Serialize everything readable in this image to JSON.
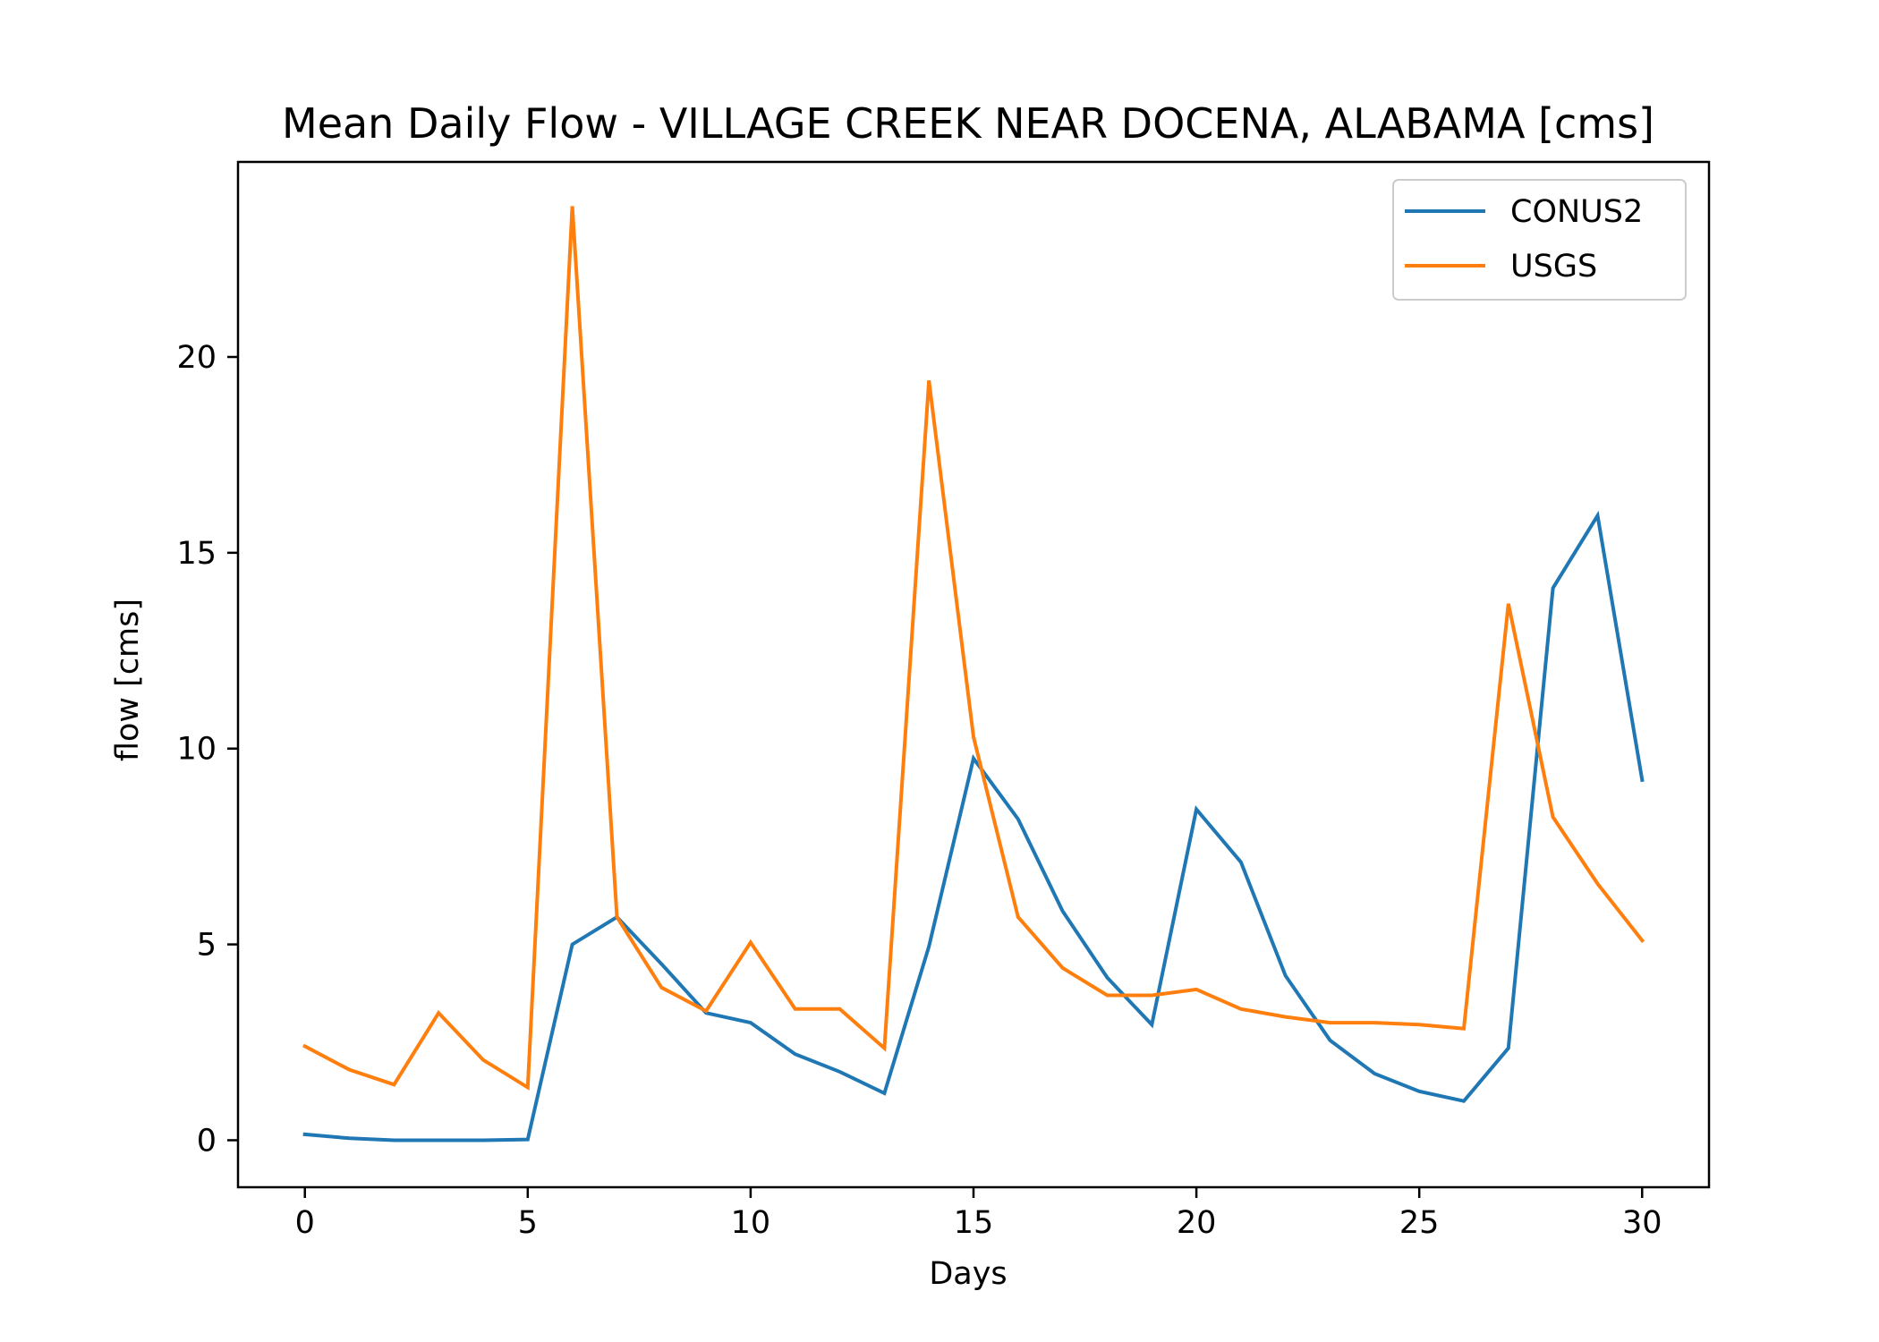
{
  "chart_data": {
    "type": "line",
    "title": "Mean Daily Flow - VILLAGE CREEK NEAR DOCENA, ALABAMA [cms]",
    "xlabel": "Days",
    "ylabel": "flow [cms]",
    "xlim": [
      -1.5,
      31.5
    ],
    "ylim": [
      -1.2,
      24.98
    ],
    "xticks": [
      0,
      5,
      10,
      15,
      20,
      25,
      30
    ],
    "yticks": [
      0,
      5,
      10,
      15,
      20
    ],
    "grid": false,
    "legend_position": "top-right",
    "x": [
      0,
      1,
      2,
      3,
      4,
      5,
      6,
      7,
      8,
      9,
      10,
      11,
      12,
      13,
      14,
      15,
      16,
      17,
      18,
      19,
      20,
      21,
      22,
      23,
      24,
      25,
      26,
      27,
      28,
      29,
      30
    ],
    "series": [
      {
        "name": "CONUS2",
        "color": "#1f77b4",
        "values": [
          0.15,
          0.05,
          0.0,
          0.0,
          0.0,
          0.02,
          5.0,
          5.7,
          4.5,
          3.25,
          3.0,
          2.2,
          1.75,
          1.2,
          4.95,
          9.75,
          8.2,
          5.85,
          4.15,
          2.95,
          8.45,
          7.1,
          4.2,
          2.55,
          1.7,
          1.25,
          1.0,
          2.35,
          14.1,
          15.95,
          9.2
        ]
      },
      {
        "name": "USGS",
        "color": "#ff7f0e",
        "values": [
          2.4,
          1.8,
          1.42,
          3.25,
          2.05,
          1.35,
          23.85,
          5.7,
          3.9,
          3.3,
          5.05,
          3.35,
          3.35,
          2.35,
          19.4,
          10.3,
          5.7,
          4.4,
          3.7,
          3.7,
          3.85,
          3.35,
          3.15,
          3.0,
          3.0,
          2.95,
          2.85,
          13.7,
          8.25,
          6.55,
          5.1
        ]
      }
    ]
  }
}
